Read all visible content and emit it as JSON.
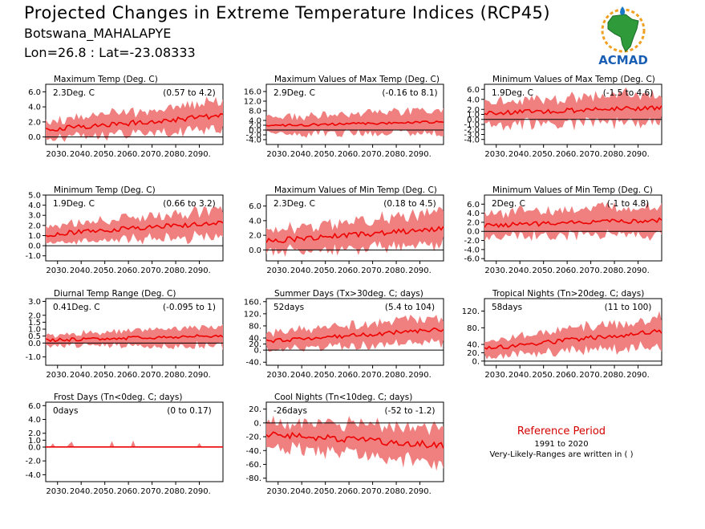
{
  "header": {
    "title": "Projected Changes in Extreme Temperature Indices (RCP45)",
    "station": "Botswana_MAHALAPYE",
    "coords": "Lon=26.8 : Lat=-23.08333"
  },
  "logo": {
    "text": "ACMAD"
  },
  "reference": {
    "title": "Reference Period",
    "years": "1991 to 2020",
    "note": "Very-Likely-Ranges are written in ( )"
  },
  "colors": {
    "band": "#f08080",
    "line": "#ee0000",
    "zero": "#000000"
  },
  "chart_data": [
    {
      "id": "txx_mean",
      "type": "area",
      "title": "Maximum Temp (Deg. C)",
      "value": "2.3Deg. C",
      "range": "(0.57 to 4.2)",
      "x_ticks": [
        "2030.",
        "2040.",
        "2050.",
        "2060.",
        "2070.",
        "2080.",
        "2090."
      ],
      "ylim": [
        -1.0,
        7.0
      ],
      "y_ticks": [
        0.0,
        2.0,
        4.0,
        6.0
      ],
      "y_tick_labels": [
        "0.0",
        "2.0",
        "4.0",
        "6.0"
      ],
      "x_range": [
        2025,
        2100
      ],
      "mean_start": 1.0,
      "mean_end": 2.8,
      "spread_start": 1.1,
      "spread_end": 1.9,
      "noise": 0.35
    },
    {
      "id": "txx",
      "type": "area",
      "title": "Maximum Values of Max Temp (Deg. C)",
      "value": "2.9Deg. C",
      "range": "(-0.16 to 8.1)",
      "x_ticks": [
        "2030.",
        "2040.",
        "2050.",
        "2060.",
        "2070.",
        "2080.",
        "2090."
      ],
      "ylim": [
        -6.0,
        19.0
      ],
      "y_ticks": [
        -4.0,
        -2.0,
        0.0,
        2.0,
        4.0,
        8.0,
        12.0,
        16.0
      ],
      "y_tick_labels": [
        "-4.0",
        "-2.0",
        "0.0",
        "2.0",
        "4.0",
        "8.0",
        "12.0",
        "16.0"
      ],
      "x_range": [
        2025,
        2100
      ],
      "mean_start": 1.8,
      "mean_end": 3.4,
      "spread_start": 3.5,
      "spread_end": 4.8,
      "noise": 0.5
    },
    {
      "id": "txn",
      "type": "area",
      "title": "Minimum Values of Max Temp (Deg. C)",
      "value": "1.9Deg. C",
      "range": "(-1.5 to 4.6)",
      "x_ticks": [
        "2030.",
        "2040.",
        "2050.",
        "2060.",
        "2070.",
        "2080.",
        "2090."
      ],
      "ylim": [
        -5.0,
        7.0
      ],
      "y_ticks": [
        -4.0,
        -3.0,
        -2.0,
        -1.0,
        0.0,
        1.0,
        2.0,
        4.0,
        6.0
      ],
      "y_tick_labels": [
        "-4.0",
        "-3.0",
        "-2.0",
        "-1.0",
        "0.0",
        "1.0",
        "2.0",
        "4.0",
        "6.0"
      ],
      "x_range": [
        2025,
        2100
      ],
      "mean_start": 1.2,
      "mean_end": 2.4,
      "spread_start": 2.4,
      "spread_end": 2.8,
      "noise": 0.45
    },
    {
      "id": "tn_mean",
      "type": "area",
      "title": "Minimum Temp (Deg. C)",
      "value": "1.9Deg. C",
      "range": "(0.66 to 3.2)",
      "x_ticks": [
        "2030.",
        "2040.",
        "2050.",
        "2060.",
        "2070.",
        "2080.",
        "2090."
      ],
      "ylim": [
        -1.5,
        5.0
      ],
      "y_ticks": [
        -1.0,
        0.0,
        1.0,
        2.0,
        3.0,
        4.0,
        5.0
      ],
      "y_tick_labels": [
        "-1.0",
        "0.0",
        "1.0",
        "2.0",
        "3.0",
        "4.0",
        "5.0"
      ],
      "x_range": [
        2025,
        2100
      ],
      "mean_start": 1.1,
      "mean_end": 2.3,
      "spread_start": 0.8,
      "spread_end": 1.3,
      "noise": 0.25
    },
    {
      "id": "tnx",
      "type": "area",
      "title": "Maximum Values of Min Temp (Deg. C)",
      "value": "2.3Deg. C",
      "range": "(0.18 to 4.5)",
      "x_ticks": [
        "2030.",
        "2040.",
        "2050.",
        "2060.",
        "2070.",
        "2080.",
        "2090."
      ],
      "ylim": [
        -1.5,
        7.5
      ],
      "y_ticks": [
        0.0,
        2.0,
        4.0,
        6.0
      ],
      "y_tick_labels": [
        "0.0",
        "2.0",
        "4.0",
        "6.0"
      ],
      "x_range": [
        2025,
        2100
      ],
      "mean_start": 1.2,
      "mean_end": 2.9,
      "spread_start": 1.5,
      "spread_end": 2.2,
      "noise": 0.35
    },
    {
      "id": "tnn",
      "type": "area",
      "title": "Minimum Values of Min Temp (Deg. C)",
      "value": "2Deg. C",
      "range": "(-1 to 4.8)",
      "x_ticks": [
        "2030.",
        "2040.",
        "2050.",
        "2060.",
        "2070.",
        "2080.",
        "2090."
      ],
      "ylim": [
        -6.5,
        8.0
      ],
      "y_ticks": [
        -6.0,
        -4.0,
        -2.0,
        0.0,
        2.0,
        4.0,
        6.0
      ],
      "y_tick_labels": [
        "-6.0",
        "-4.0",
        "-2.0",
        "0.0",
        "2.0",
        "4.0",
        "6.0"
      ],
      "x_range": [
        2025,
        2100
      ],
      "mean_start": 1.3,
      "mean_end": 2.5,
      "spread_start": 2.6,
      "spread_end": 3.3,
      "noise": 0.5
    },
    {
      "id": "dtr",
      "type": "area",
      "title": "Diurnal Temp Range (Deg. C)",
      "value": "0.41Deg. C",
      "range": "(-0.095 to 1)",
      "x_ticks": [
        "2030.",
        "2040.",
        "2050.",
        "2060.",
        "2070.",
        "2080.",
        "2090."
      ],
      "ylim": [
        -1.6,
        3.2
      ],
      "y_ticks": [
        -1.0,
        0.0,
        0.5,
        1.0,
        1.5,
        2.0,
        3.0
      ],
      "y_tick_labels": [
        "-1.0",
        "0.0",
        "0.5",
        "1.0",
        "1.5",
        "2.0",
        "3.0"
      ],
      "x_range": [
        2025,
        2100
      ],
      "mean_start": 0.2,
      "mean_end": 0.55,
      "spread_start": 0.35,
      "spread_end": 0.7,
      "noise": 0.12
    },
    {
      "id": "su",
      "type": "area",
      "title": "Summer Days (Tx>30deg. C; days)",
      "value": "52days",
      "range": "(5.4 to 104)",
      "x_ticks": [
        "2030.",
        "2040.",
        "2050.",
        "2060.",
        "2070.",
        "2080.",
        "2090."
      ],
      "ylim": [
        -50,
        170
      ],
      "y_ticks": [
        -40,
        0,
        20,
        40,
        80,
        120,
        160
      ],
      "y_tick_labels": [
        "-40.",
        "0.",
        "20.",
        "40.",
        "80.",
        "120.",
        "160."
      ],
      "x_range": [
        2025,
        2100
      ],
      "mean_start": 30,
      "mean_end": 68,
      "spread_start": 28,
      "spread_end": 40,
      "noise": 7
    },
    {
      "id": "tr",
      "type": "area",
      "title": "Tropical Nights (Tn>20deg. C; days)",
      "value": "58days",
      "range": "(11 to 100)",
      "x_ticks": [
        "2030.",
        "2040.",
        "2050.",
        "2060.",
        "2070.",
        "2080.",
        "2090."
      ],
      "ylim": [
        -10,
        150
      ],
      "y_ticks": [
        0,
        20,
        40,
        80,
        120
      ],
      "y_tick_labels": [
        "0.",
        "20.",
        "40.",
        "80.",
        "120."
      ],
      "x_range": [
        2025,
        2100
      ],
      "mean_start": 30,
      "mean_end": 72,
      "spread_start": 18,
      "spread_end": 35,
      "noise": 6
    },
    {
      "id": "fd",
      "type": "area",
      "title": "Frost Days (Tn<0deg. C; days)",
      "value": "0days",
      "range": "(0 to 0.17)",
      "x_ticks": [
        "2030.",
        "2040.",
        "2050.",
        "2060.",
        "2070.",
        "2080.",
        "2090."
      ],
      "ylim": [
        -5.0,
        6.5
      ],
      "y_ticks": [
        -4.0,
        -2.0,
        0.0,
        1.0,
        2.0,
        4.0,
        6.0
      ],
      "y_tick_labels": [
        "-4.0",
        "-2.0",
        "0.0",
        "1.0",
        "2.0",
        "4.0",
        "6.0"
      ],
      "x_range": [
        2025,
        2100
      ],
      "mean_start": 0.0,
      "mean_end": 0.0,
      "spread_start": 0.05,
      "spread_end": 0.05,
      "noise": 0.0,
      "spikes": true
    },
    {
      "id": "tn10",
      "type": "area",
      "title": "Cool Nights (Tn<10deg. C; days)",
      "value": "-26days",
      "range": "(-52 to -1.2)",
      "x_ticks": [
        "2030.",
        "2040.",
        "2050.",
        "2060.",
        "2070.",
        "2080.",
        "2090."
      ],
      "ylim": [
        -85,
        30
      ],
      "y_ticks": [
        -80,
        -60,
        -40,
        -20,
        0,
        20
      ],
      "y_tick_labels": [
        "-80.",
        "-60.",
        "-40.",
        "-20.",
        "0.",
        "20."
      ],
      "x_range": [
        2025,
        2100
      ],
      "mean_start": -16,
      "mean_end": -33,
      "spread_start": 18,
      "spread_end": 26,
      "noise": 5
    }
  ]
}
